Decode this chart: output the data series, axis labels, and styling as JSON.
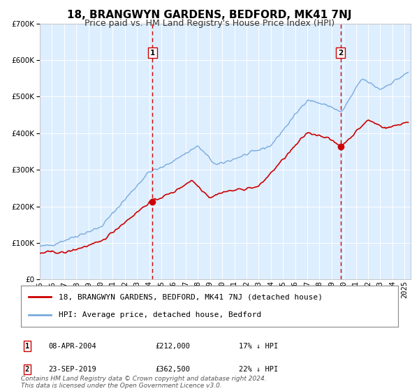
{
  "title": "18, BRANGWYN GARDENS, BEDFORD, MK41 7NJ",
  "subtitle": "Price paid vs. HM Land Registry's House Price Index (HPI)",
  "background_color": "#ffffff",
  "plot_bg_color": "#ddeeff",
  "grid_color": "#ffffff",
  "ylim": [
    0,
    700000
  ],
  "yticks": [
    0,
    100000,
    200000,
    300000,
    400000,
    500000,
    600000,
    700000
  ],
  "ytick_labels": [
    "£0",
    "£100K",
    "£200K",
    "£300K",
    "£400K",
    "£500K",
    "£600K",
    "£700K"
  ],
  "xlim_start": 1995.0,
  "xlim_end": 2025.5,
  "sale1_x": 2004.27,
  "sale1_y": 212000,
  "sale1_label": "1",
  "sale1_date": "08-APR-2004",
  "sale1_price": "£212,000",
  "sale1_hpi": "17% ↓ HPI",
  "sale2_x": 2019.73,
  "sale2_y": 362500,
  "sale2_label": "2",
  "sale2_date": "23-SEP-2019",
  "sale2_price": "£362,500",
  "sale2_hpi": "22% ↓ HPI",
  "red_line_color": "#cc0000",
  "blue_line_color": "#7aaadd",
  "dashed_line_color": "#cc0000",
  "legend_label_red": "18, BRANGWYN GARDENS, BEDFORD, MK41 7NJ (detached house)",
  "legend_label_blue": "HPI: Average price, detached house, Bedford",
  "footer_text": "Contains HM Land Registry data © Crown copyright and database right 2024.\nThis data is licensed under the Open Government Licence v3.0.",
  "title_fontsize": 11,
  "subtitle_fontsize": 9,
  "tick_fontsize": 7.5,
  "legend_fontsize": 8,
  "footer_fontsize": 6.5
}
